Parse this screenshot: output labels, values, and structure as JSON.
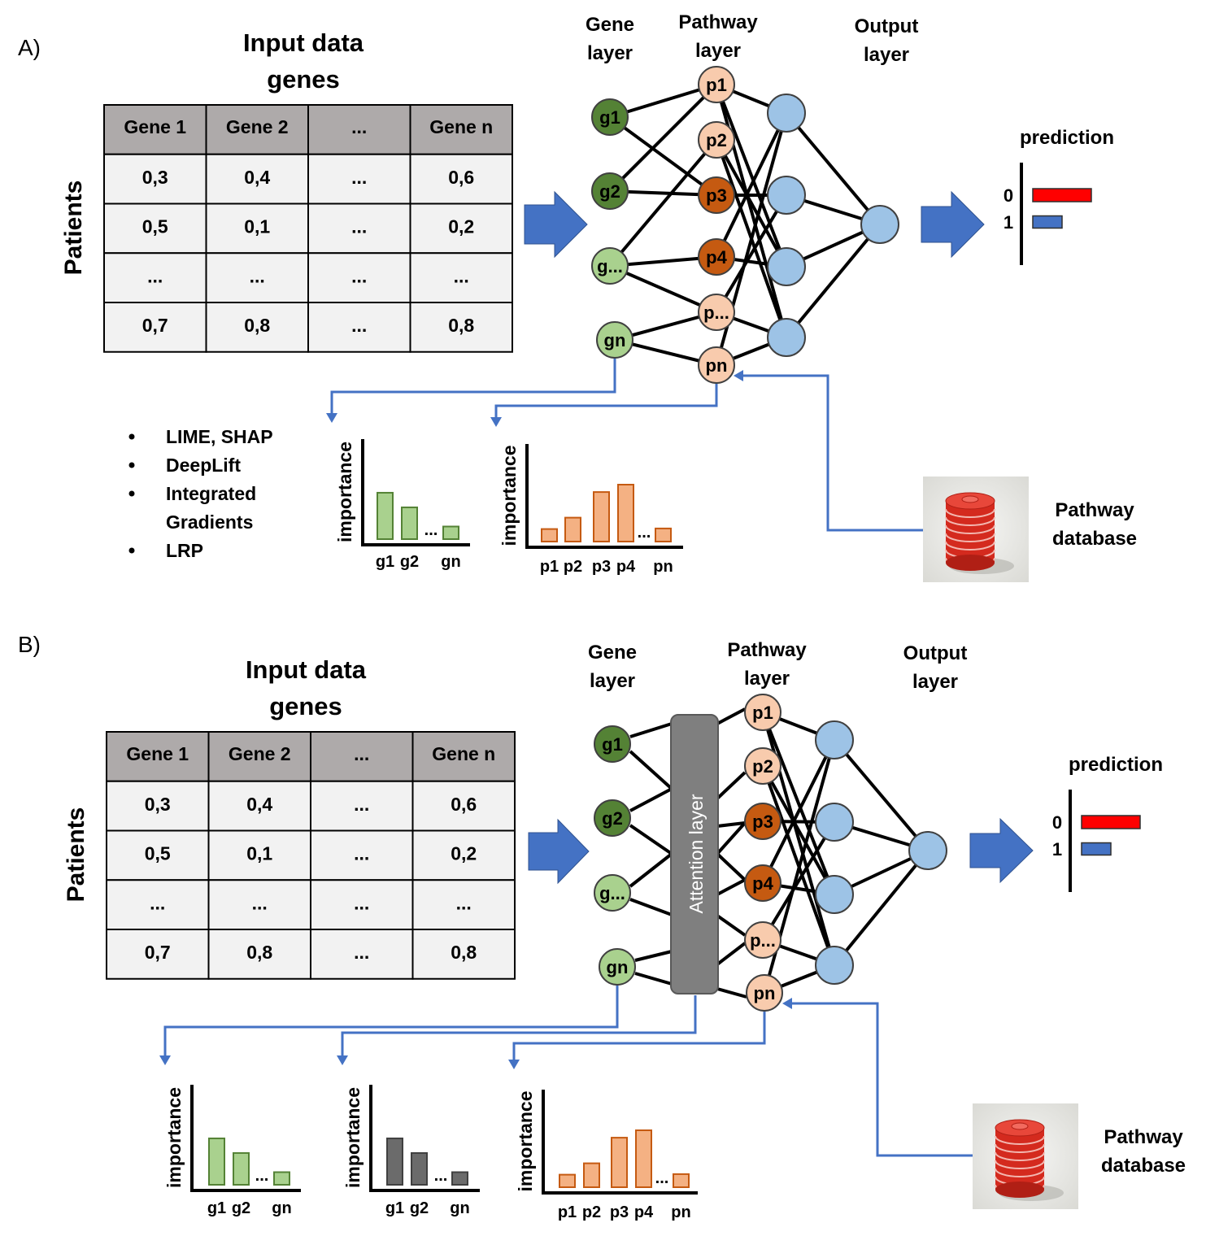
{
  "panel_a": {
    "label": "A)",
    "input_title": [
      "Input data",
      "genes"
    ],
    "patients_label": "Patients",
    "table": {
      "headers": [
        "Gene 1",
        "Gene 2",
        "...",
        "Gene n"
      ],
      "rows": [
        [
          "0,3",
          "0,4",
          "...",
          "0,6"
        ],
        [
          "0,5",
          "0,1",
          "...",
          "0,2"
        ],
        [
          "...",
          "...",
          "...",
          "..."
        ],
        [
          "0,7",
          "0,8",
          "...",
          "0,8"
        ]
      ]
    },
    "layer_titles": {
      "gene": [
        "Gene",
        "layer"
      ],
      "pathway": [
        "Pathway",
        "layer"
      ],
      "output": [
        "Output",
        "layer"
      ]
    },
    "gene_nodes": [
      "g1",
      "g2",
      "g...",
      "gn"
    ],
    "pathway_nodes": [
      "p1",
      "p2",
      "p3",
      "p4",
      "p...",
      "pn"
    ],
    "prediction_label": "prediction",
    "prediction": {
      "categories": [
        "0",
        "1"
      ],
      "values": [
        1.0,
        0.5
      ]
    },
    "methods": [
      "LIME, SHAP",
      "DeepLift",
      "Integrated",
      "Gradients",
      "LRP"
    ],
    "gene_importance": {
      "ylabel": "importance",
      "xlabels": [
        "g1",
        "g2",
        "gn"
      ],
      "values": [
        0.92,
        0.63,
        0.25
      ]
    },
    "pathway_importance": {
      "ylabel": "importance",
      "xlabels": [
        "p1",
        "p2",
        "p3",
        "p4",
        "pn"
      ],
      "values": [
        0.22,
        0.42,
        0.87,
        1.0,
        0.23
      ]
    },
    "database_label": [
      "Pathway",
      "database"
    ]
  },
  "panel_b": {
    "label": "B)",
    "input_title": [
      "Input data",
      "genes"
    ],
    "patients_label": "Patients",
    "table": {
      "headers": [
        "Gene 1",
        "Gene 2",
        "...",
        "Gene n"
      ],
      "rows": [
        [
          "0,3",
          "0,4",
          "...",
          "0,6"
        ],
        [
          "0,5",
          "0,1",
          "...",
          "0,2"
        ],
        [
          "...",
          "...",
          "...",
          "..."
        ],
        [
          "0,7",
          "0,8",
          "...",
          "0,8"
        ]
      ]
    },
    "layer_titles": {
      "gene": [
        "Gene",
        "layer"
      ],
      "pathway": [
        "Pathway",
        "layer"
      ],
      "output": [
        "Output",
        "layer"
      ]
    },
    "attention_label": "Attention layer",
    "gene_nodes": [
      "g1",
      "g2",
      "g...",
      "gn"
    ],
    "pathway_nodes": [
      "p1",
      "p2",
      "p3",
      "p4",
      "p...",
      "pn"
    ],
    "prediction_label": "prediction",
    "prediction": {
      "categories": [
        "0",
        "1"
      ],
      "values": [
        1.0,
        0.5
      ]
    },
    "gene_importance": {
      "ylabel": "importance",
      "xlabels": [
        "g1",
        "g2",
        "gn"
      ],
      "values": [
        0.92,
        0.63,
        0.25
      ]
    },
    "attention_importance": {
      "ylabel": "importance",
      "xlabels": [
        "g1",
        "g2",
        "gn"
      ],
      "values": [
        0.92,
        0.63,
        0.25
      ]
    },
    "pathway_importance": {
      "ylabel": "importance",
      "xlabels": [
        "p1",
        "p2",
        "p3",
        "p4",
        "pn"
      ],
      "values": [
        0.22,
        0.42,
        0.87,
        1.0,
        0.23
      ]
    },
    "database_label": [
      "Pathway",
      "database"
    ]
  },
  "ellipsis": "...",
  "colors": {
    "gene_dark": "#548235",
    "gene_light": "#a9d18e",
    "pathway_dark": "#c55a11",
    "pathway_light": "#f8cbad",
    "output_node": "#9dc3e6",
    "arrow_blue": "#4472c4",
    "pred_red": "#ff0000",
    "attention_gray": "#7f7f7f",
    "header_gray": "#aeaaaa",
    "cell_gray": "#f2f2f2",
    "bar_gene": "#a9d18e",
    "bar_attention": "#6b6b6b",
    "bar_pathway": "#f4b183"
  }
}
